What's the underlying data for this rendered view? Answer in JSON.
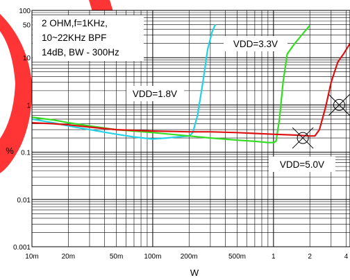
{
  "chart_data": {
    "type": "line",
    "xlabel": "W",
    "ylabel": "%",
    "x_scale": "log",
    "y_scale": "log",
    "xlim": [
      0.01,
      4.3
    ],
    "ylim": [
      0.001,
      100
    ],
    "x_ticks": [
      {
        "v": 0.01,
        "label": "10m"
      },
      {
        "v": 0.02,
        "label": "20m"
      },
      {
        "v": 0.05,
        "label": "50m"
      },
      {
        "v": 0.1,
        "label": "100m"
      },
      {
        "v": 0.2,
        "label": "200m"
      },
      {
        "v": 0.5,
        "label": "500m"
      },
      {
        "v": 1,
        "label": "1"
      },
      {
        "v": 2,
        "label": "2"
      },
      {
        "v": 4,
        "label": "4"
      }
    ],
    "y_ticks": [
      {
        "v": 100,
        "label": "100"
      },
      {
        "v": 50,
        "label": "50"
      },
      {
        "v": 10,
        "label": "10"
      },
      {
        "v": 1,
        "label": "1"
      },
      {
        "v": 0.1,
        "label": "0.1"
      },
      {
        "v": 0.01,
        "label": "0.01"
      },
      {
        "v": 0.001,
        "label": "0.001"
      }
    ],
    "grid": true,
    "conditions": [
      "2 OHM,f=1KHz,",
      "10~22KHz BPF",
      "14dB, BW - 300Hz"
    ],
    "series": [
      {
        "name": "VDD=1.8V",
        "color": "#22d3e6",
        "points": [
          [
            0.01,
            0.5
          ],
          [
            0.015,
            0.42
          ],
          [
            0.02,
            0.36
          ],
          [
            0.03,
            0.3
          ],
          [
            0.05,
            0.24
          ],
          [
            0.07,
            0.21
          ],
          [
            0.1,
            0.19
          ],
          [
            0.13,
            0.2
          ],
          [
            0.16,
            0.21
          ],
          [
            0.2,
            0.22
          ],
          [
            0.215,
            0.26
          ],
          [
            0.235,
            0.6
          ],
          [
            0.26,
            3
          ],
          [
            0.285,
            15
          ],
          [
            0.31,
            35
          ],
          [
            0.33,
            50
          ]
        ]
      },
      {
        "name": "VDD=3.3V",
        "color": "#33dd22",
        "points": [
          [
            0.01,
            0.55
          ],
          [
            0.015,
            0.48
          ],
          [
            0.02,
            0.42
          ],
          [
            0.03,
            0.36
          ],
          [
            0.05,
            0.3
          ],
          [
            0.1,
            0.26
          ],
          [
            0.2,
            0.22
          ],
          [
            0.3,
            0.2
          ],
          [
            0.5,
            0.18
          ],
          [
            0.7,
            0.17
          ],
          [
            0.9,
            0.16
          ],
          [
            1.0,
            0.16
          ],
          [
            1.05,
            0.17
          ],
          [
            1.12,
            0.5
          ],
          [
            1.2,
            3
          ],
          [
            1.3,
            12
          ],
          [
            1.5,
            20
          ],
          [
            1.8,
            35
          ],
          [
            2.0,
            48
          ]
        ]
      },
      {
        "name": "VDD=5.0V",
        "color": "#dd1111",
        "points": [
          [
            0.01,
            0.42
          ],
          [
            0.015,
            0.4
          ],
          [
            0.02,
            0.38
          ],
          [
            0.03,
            0.34
          ],
          [
            0.05,
            0.3
          ],
          [
            0.1,
            0.28
          ],
          [
            0.2,
            0.27
          ],
          [
            0.3,
            0.27
          ],
          [
            0.5,
            0.26
          ],
          [
            0.7,
            0.25
          ],
          [
            1.0,
            0.24
          ],
          [
            1.5,
            0.23
          ],
          [
            2.0,
            0.22
          ],
          [
            2.2,
            0.22
          ],
          [
            2.4,
            0.3
          ],
          [
            2.7,
            0.9
          ],
          [
            3.0,
            3
          ],
          [
            3.4,
            8
          ],
          [
            3.8,
            12
          ],
          [
            4.3,
            20
          ]
        ]
      }
    ],
    "annotations": [
      {
        "text": "VDD=1.8V",
        "series": "VDD=1.8V"
      },
      {
        "text": "VDD=3.3V",
        "series": "VDD=3.3V"
      },
      {
        "text": "VDD=5.0V",
        "series": "VDD=5.0V"
      }
    ],
    "markers": [
      {
        "x": 1.75,
        "y": 0.2,
        "shape": "circle-x"
      },
      {
        "x": 3.5,
        "y": 1.0,
        "shape": "circle-x"
      }
    ]
  }
}
